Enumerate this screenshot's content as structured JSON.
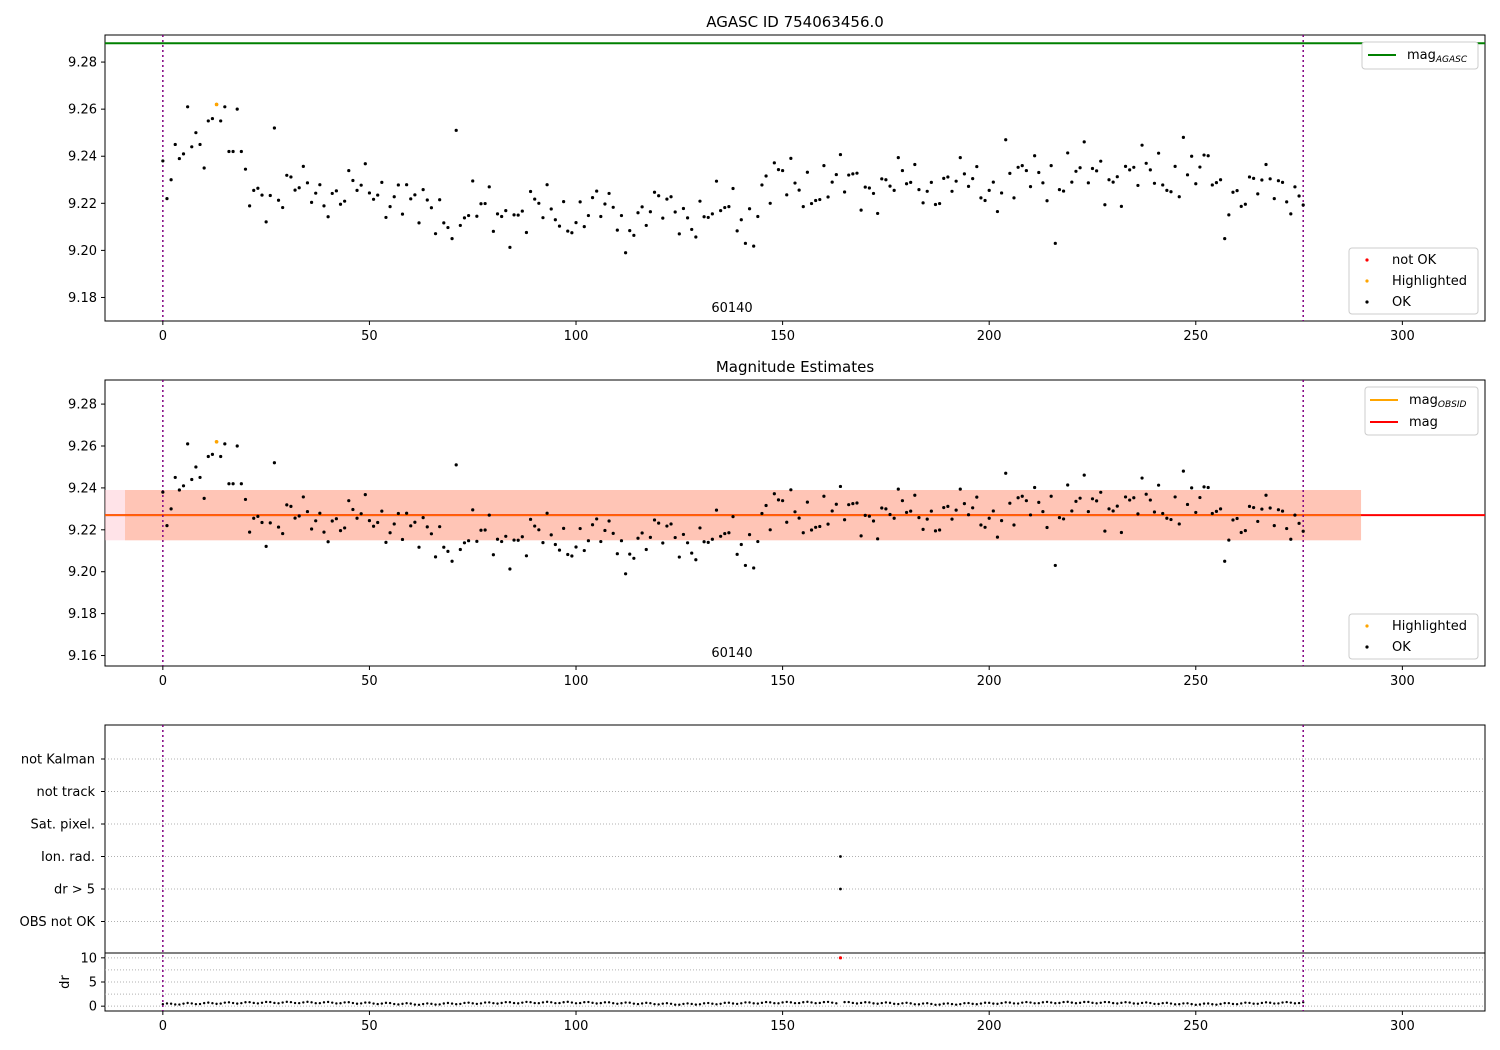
{
  "chart_data": [
    {
      "type": "scatter",
      "title": "AGASC ID 754063456.0",
      "annotation": "60140",
      "xticks": [
        0,
        50,
        100,
        150,
        200,
        250,
        300
      ],
      "yticks": [
        9.18,
        9.2,
        9.22,
        9.24,
        9.26,
        9.28
      ],
      "xlim": [
        -14,
        320
      ],
      "ylim": [
        9.17,
        9.2915
      ],
      "vlines": [
        0,
        276
      ],
      "hlines": [
        {
          "name": "mag_AGASC",
          "y": 9.288,
          "color": "#008000"
        }
      ],
      "legend_lines": [
        {
          "label": "mag",
          "sub": "AGASC",
          "color": "#008000"
        }
      ],
      "legend_points": [
        {
          "label": "not OK",
          "color": "#ff0000"
        },
        {
          "label": "Highlighted",
          "color": "#ffa500"
        },
        {
          "label": "OK",
          "color": "#000000"
        }
      ],
      "highlighted": [
        {
          "x": 13,
          "y": 9.262
        }
      ],
      "grid": false
    },
    {
      "type": "scatter",
      "title": "Magnitude Estimates",
      "annotation": "60140",
      "xticks": [
        0,
        50,
        100,
        150,
        200,
        250,
        300
      ],
      "yticks": [
        9.16,
        9.18,
        9.2,
        9.22,
        9.24,
        9.26,
        9.28
      ],
      "xlim": [
        -14,
        320
      ],
      "ylim": [
        9.155,
        9.2915
      ],
      "vlines": [
        0,
        276
      ],
      "mag": 9.227,
      "mag_band": [
        9.215,
        9.239
      ],
      "mag_obsid": 9.227,
      "legend_lines": [
        {
          "label": "mag",
          "sub": "OBSID",
          "color": "#ffa500"
        },
        {
          "label": "mag",
          "sub": "",
          "color": "#ff0000"
        }
      ],
      "legend_points": [
        {
          "label": "Highlighted",
          "color": "#ffa500"
        },
        {
          "label": "OK",
          "color": "#000000"
        }
      ],
      "highlighted": [
        {
          "x": 13,
          "y": 9.262
        }
      ],
      "grid": false
    },
    {
      "type": "scatter",
      "title": "",
      "categories": [
        "not Kalman",
        "not track",
        "Sat. pixel.",
        "Ion. rad.",
        "dr > 5",
        "OBS not OK"
      ],
      "flags": [
        {
          "category": "Ion. rad.",
          "x": 164
        },
        {
          "category": "dr > 5",
          "x": 164
        }
      ],
      "dr_ylabel": "dr",
      "dr_yticks": [
        0,
        5,
        10
      ],
      "dr_ylim": [
        -1,
        11
      ],
      "dr_outlier": {
        "x": 164,
        "y": 10,
        "color": "#ff0000"
      },
      "xticks": [
        0,
        50,
        100,
        150,
        200,
        250,
        300
      ],
      "xlim": [
        -14,
        320
      ],
      "vlines": [
        0,
        276
      ],
      "grid": true
    }
  ],
  "colors": {
    "vline": "#800080",
    "band_outer": "#ffc0cb",
    "band_inner": "#ffa07a"
  }
}
